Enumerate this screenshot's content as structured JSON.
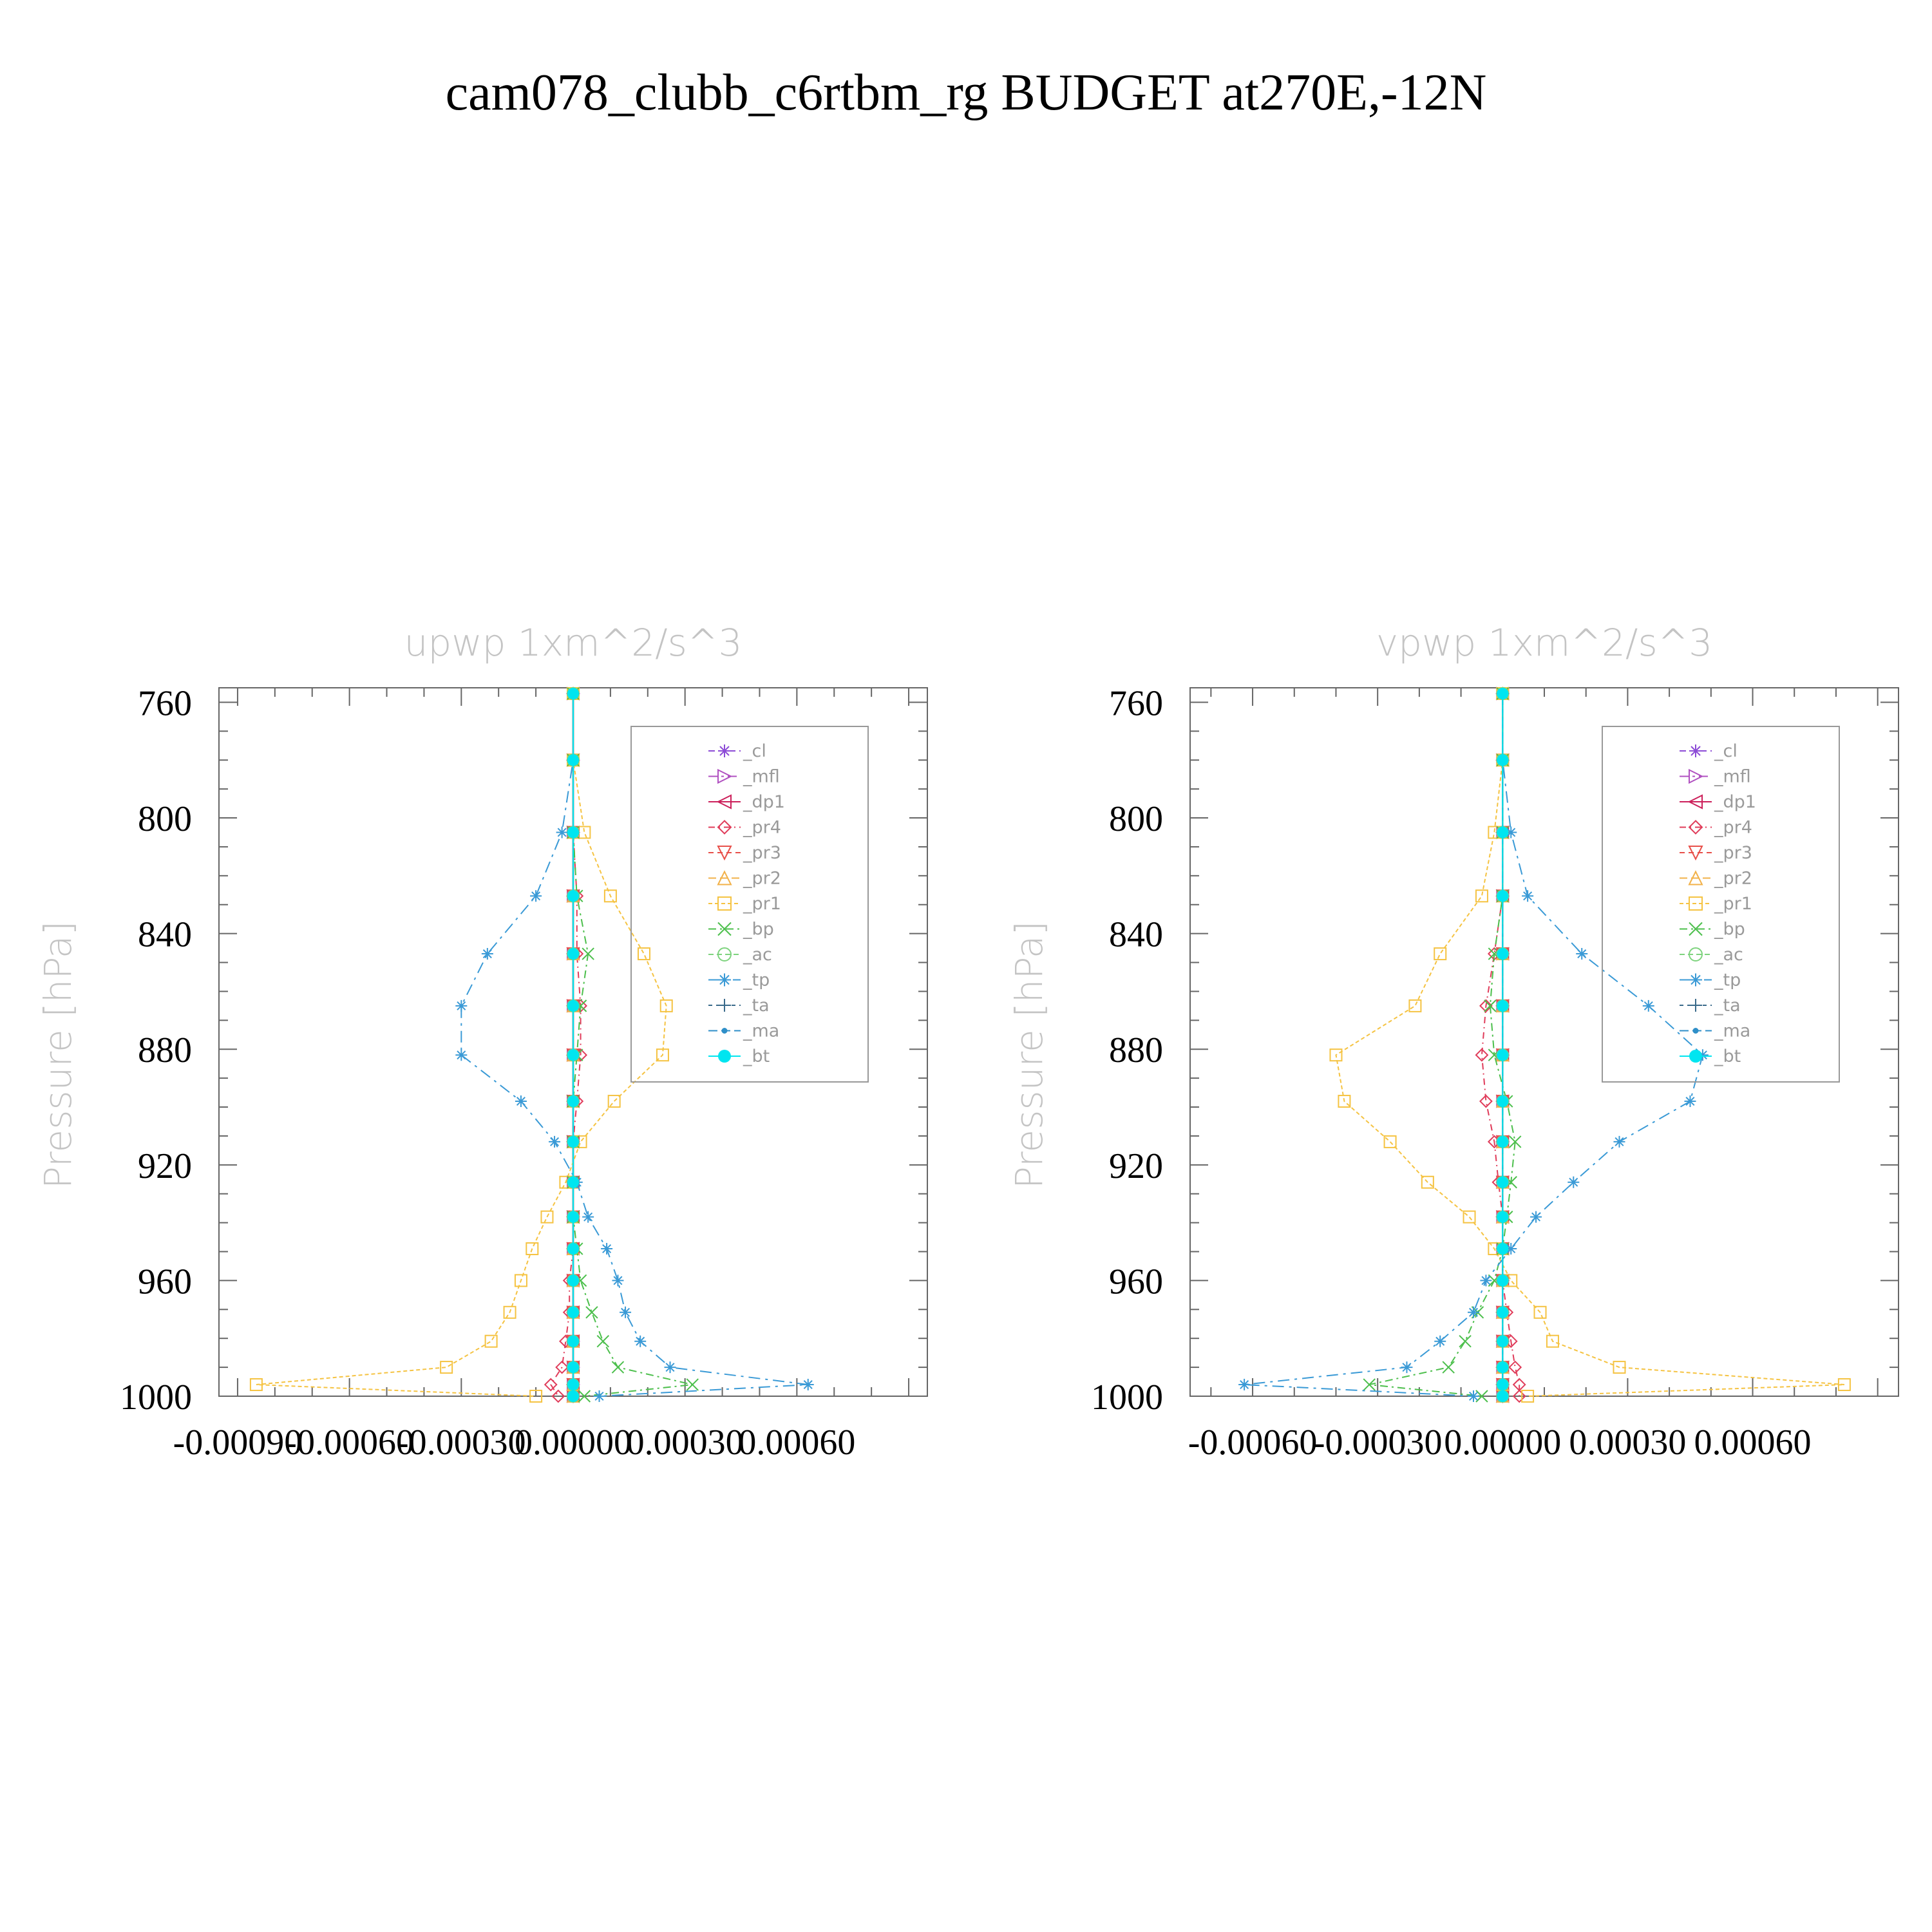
{
  "title": "cam078_clubb_c6rtbm_rg  BUDGET at270E,-12N",
  "chart_data": [
    {
      "type": "line",
      "title": "upwp    1xm^2/s^3",
      "ylabel": "Pressure [hPa]",
      "xlim": [
        -0.00095,
        0.00095
      ],
      "ylim": [
        1000,
        755
      ],
      "xticks": [
        -0.0009,
        -0.0006,
        -0.0003,
        0.0,
        0.0003,
        0.0006
      ],
      "xtick_labels": [
        "-0.00090",
        "-0.00060",
        "-0.00030",
        "0.00000",
        "0.00030",
        "0.00060"
      ],
      "yticks": [
        760,
        800,
        840,
        880,
        920,
        960,
        1000
      ],
      "ytick_labels": [
        "760",
        "800",
        "840",
        "880",
        "920",
        "960",
        "1000"
      ],
      "legend_placement": "top-right",
      "levels": [
        757,
        780,
        805,
        827,
        847,
        865,
        882,
        898,
        912,
        926,
        938,
        949,
        960,
        971,
        981,
        990,
        996,
        1000
      ],
      "series": [
        {
          "name": "_cl",
          "color": "#8c4bd6",
          "marker": "star",
          "values": [
            0,
            0,
            0,
            0,
            0,
            0,
            0,
            0,
            0,
            0,
            0,
            0,
            0,
            0,
            0,
            0,
            0,
            0
          ]
        },
        {
          "name": "_mfl",
          "color": "#b050c0",
          "marker": "triangle-right",
          "values": [
            0,
            0,
            0,
            0,
            0,
            0,
            0,
            0,
            0,
            0,
            0,
            0,
            0,
            0,
            0,
            0,
            0,
            0
          ]
        },
        {
          "name": "_dp1",
          "color": "#cc1f5a",
          "marker": "triangle-left",
          "values": [
            0,
            0,
            0,
            0,
            0,
            0,
            0,
            0,
            0,
            0,
            0,
            0,
            0,
            0,
            0,
            0,
            0,
            0
          ]
        },
        {
          "name": "_pr4",
          "color": "#e03c5a",
          "marker": "diamond",
          "values": [
            0,
            0,
            0,
            1e-05,
            1e-05,
            2e-05,
            2e-05,
            1e-05,
            0,
            0,
            0,
            0,
            -1e-05,
            -1e-05,
            -2e-05,
            -3e-05,
            -6e-05,
            -4e-05
          ]
        },
        {
          "name": "_pr3",
          "color": "#e8504a",
          "marker": "triangle-down",
          "values": [
            0,
            0,
            0,
            0,
            0,
            0,
            0,
            0,
            0,
            0,
            0,
            0,
            0,
            0,
            0,
            0,
            0,
            0
          ]
        },
        {
          "name": "_pr2",
          "color": "#f2b24a",
          "marker": "triangle-up",
          "values": [
            0,
            0,
            0,
            0,
            0,
            0,
            0,
            0,
            0,
            0,
            0,
            0,
            0,
            0,
            0,
            0,
            0,
            0
          ]
        },
        {
          "name": "_pr1",
          "color": "#f5c342",
          "marker": "square",
          "values": [
            0,
            0,
            3e-05,
            0.0001,
            0.00019,
            0.00025,
            0.00024,
            0.00011,
            2e-05,
            -2e-05,
            -7e-05,
            -0.00011,
            -0.00014,
            -0.00017,
            -0.00022,
            -0.00034,
            -0.00085,
            -0.0001
          ]
        },
        {
          "name": "_bp",
          "color": "#4cbf4c",
          "marker": "x",
          "values": [
            0,
            0,
            0,
            1e-05,
            4e-05,
            2e-05,
            1e-05,
            0,
            0,
            0,
            0,
            1e-05,
            2e-05,
            5e-05,
            8e-05,
            0.00012,
            0.00032,
            3e-05
          ]
        },
        {
          "name": "_ac",
          "color": "#7ed37e",
          "marker": "circle",
          "values": [
            0,
            0,
            0,
            0,
            0,
            0,
            0,
            0,
            0,
            0,
            0,
            0,
            0,
            0,
            0,
            0,
            0,
            0
          ]
        },
        {
          "name": "_tp",
          "color": "#3a9ad6",
          "marker": "asterisk",
          "values": [
            0,
            0,
            -3e-05,
            -0.0001,
            -0.00023,
            -0.0003,
            -0.0003,
            -0.00014,
            -5e-05,
            1e-05,
            4e-05,
            9e-05,
            0.00012,
            0.00014,
            0.00018,
            0.00026,
            0.00063,
            7e-05
          ]
        },
        {
          "name": "_ta",
          "color": "#3a6a8a",
          "marker": "plus",
          "values": [
            0,
            0,
            0,
            0,
            0,
            0,
            0,
            0,
            0,
            0,
            0,
            0,
            0,
            0,
            0,
            0,
            0,
            0
          ]
        },
        {
          "name": "_ma",
          "color": "#2f8fc8",
          "marker": "dot",
          "values": [
            0,
            0,
            0,
            0,
            0,
            0,
            0,
            0,
            0,
            0,
            0,
            0,
            0,
            0,
            0,
            0,
            0,
            0
          ]
        },
        {
          "name": "_bt",
          "color": "#00e5f0",
          "marker": "filled-circle",
          "values": [
            0,
            0,
            0,
            0,
            0,
            0,
            0,
            0,
            0,
            0,
            0,
            0,
            0,
            0,
            0,
            0,
            0,
            0
          ]
        }
      ]
    },
    {
      "type": "line",
      "title": "vpwp    1xm^2/s^3",
      "ylabel": "Pressure [hPa]",
      "xlim": [
        -0.00075,
        0.00095
      ],
      "ylim": [
        1000,
        755
      ],
      "xticks": [
        -0.0006,
        -0.0003,
        0.0,
        0.0003,
        0.0006
      ],
      "xtick_labels": [
        "-0.00060",
        "-0.00030",
        "0.00000",
        "0.00030",
        "0.00060"
      ],
      "yticks": [
        760,
        800,
        840,
        880,
        920,
        960,
        1000
      ],
      "ytick_labels": [
        "760",
        "800",
        "840",
        "880",
        "920",
        "960",
        "1000"
      ],
      "legend_placement": "top-right",
      "levels": [
        757,
        780,
        805,
        827,
        847,
        865,
        882,
        898,
        912,
        926,
        938,
        949,
        960,
        971,
        981,
        990,
        996,
        1000
      ],
      "series": [
        {
          "name": "_cl",
          "color": "#8c4bd6",
          "marker": "star",
          "values": [
            0,
            0,
            0,
            0,
            0,
            0,
            0,
            0,
            0,
            0,
            0,
            0,
            0,
            0,
            0,
            0,
            0,
            0
          ]
        },
        {
          "name": "_mfl",
          "color": "#b050c0",
          "marker": "triangle-right",
          "values": [
            0,
            0,
            0,
            0,
            0,
            0,
            0,
            0,
            0,
            0,
            0,
            0,
            0,
            0,
            0,
            0,
            0,
            0
          ]
        },
        {
          "name": "_dp1",
          "color": "#cc1f5a",
          "marker": "triangle-left",
          "values": [
            0,
            0,
            0,
            0,
            0,
            0,
            0,
            0,
            0,
            0,
            0,
            0,
            0,
            0,
            0,
            0,
            0,
            0
          ]
        },
        {
          "name": "_pr4",
          "color": "#e03c5a",
          "marker": "diamond",
          "values": [
            0,
            0,
            0,
            0,
            -2e-05,
            -4e-05,
            -5e-05,
            -4e-05,
            -2e-05,
            -1e-05,
            0,
            0,
            0,
            1e-05,
            2e-05,
            3e-05,
            4e-05,
            4e-05
          ]
        },
        {
          "name": "_pr3",
          "color": "#e8504a",
          "marker": "triangle-down",
          "values": [
            0,
            0,
            0,
            0,
            0,
            0,
            0,
            0,
            0,
            0,
            0,
            0,
            0,
            0,
            0,
            0,
            0,
            0
          ]
        },
        {
          "name": "_pr2",
          "color": "#f2b24a",
          "marker": "triangle-up",
          "values": [
            0,
            0,
            0,
            0,
            0,
            0,
            0,
            0,
            0,
            0,
            0,
            0,
            0,
            0,
            0,
            0,
            0,
            0
          ]
        },
        {
          "name": "_pr1",
          "color": "#f5c342",
          "marker": "square",
          "values": [
            0,
            0,
            -2e-05,
            -5e-05,
            -0.00015,
            -0.00021,
            -0.0004,
            -0.00038,
            -0.00027,
            -0.00018,
            -8e-05,
            -2e-05,
            2e-05,
            9e-05,
            0.00012,
            0.00028,
            0.00082,
            6e-05
          ]
        },
        {
          "name": "_bp",
          "color": "#4cbf4c",
          "marker": "x",
          "values": [
            0,
            0,
            0,
            0,
            -2e-05,
            -3e-05,
            -2e-05,
            1e-05,
            3e-05,
            2e-05,
            1e-05,
            0,
            -2e-05,
            -6e-05,
            -9e-05,
            -0.00013,
            -0.00032,
            -5e-05
          ]
        },
        {
          "name": "_ac",
          "color": "#7ed37e",
          "marker": "circle",
          "values": [
            0,
            0,
            0,
            0,
            0,
            0,
            0,
            0,
            0,
            0,
            0,
            0,
            0,
            0,
            0,
            0,
            0,
            0
          ]
        },
        {
          "name": "_tp",
          "color": "#3a9ad6",
          "marker": "asterisk",
          "values": [
            0,
            0,
            2e-05,
            6e-05,
            0.00019,
            0.00035,
            0.00048,
            0.00045,
            0.00028,
            0.00017,
            8e-05,
            2e-05,
            -4e-05,
            -7e-05,
            -0.00015,
            -0.00023,
            -0.00062,
            -7e-05
          ]
        },
        {
          "name": "_ta",
          "color": "#3a6a8a",
          "marker": "plus",
          "values": [
            0,
            0,
            0,
            0,
            0,
            0,
            0,
            0,
            0,
            0,
            0,
            0,
            0,
            0,
            0,
            0,
            0,
            0
          ]
        },
        {
          "name": "_ma",
          "color": "#2f8fc8",
          "marker": "dot",
          "values": [
            0,
            0,
            0,
            0,
            0,
            0,
            0,
            0,
            0,
            0,
            0,
            0,
            0,
            0,
            0,
            0,
            0,
            0
          ]
        },
        {
          "name": "_bt",
          "color": "#00e5f0",
          "marker": "filled-circle",
          "values": [
            0,
            0,
            0,
            0,
            0,
            0,
            0,
            0,
            0,
            0,
            0,
            0,
            0,
            0,
            0,
            0,
            0,
            0
          ]
        }
      ]
    }
  ]
}
